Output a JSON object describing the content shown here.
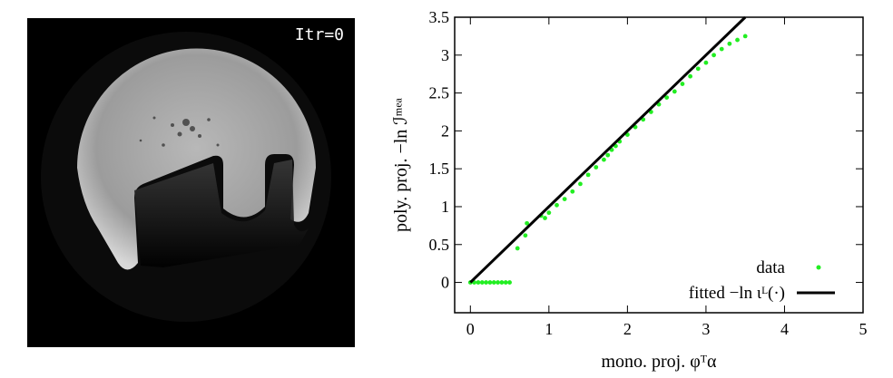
{
  "figure": {
    "left_panel": {
      "iteration_label": "Itr=0"
    }
  },
  "chart_data": {
    "type": "scatter",
    "xlabel": "mono. proj. φᵀα",
    "ylabel": "poly. proj. −ln ℐᵐᵉᵃ",
    "xlim": [
      -0.2,
      5
    ],
    "ylim": [
      -0.4,
      3.5
    ],
    "xticks": [
      0,
      1,
      2,
      3,
      4,
      5
    ],
    "yticks": [
      0,
      0.5,
      1,
      1.5,
      2,
      2.5,
      3,
      3.5
    ],
    "xtick_labels": [
      "0",
      "1",
      "2",
      "3",
      "4",
      "5"
    ],
    "ytick_labels": [
      "0",
      "0.5",
      "1",
      "1.5",
      "2",
      "2.5",
      "3",
      "3.5"
    ],
    "grid": false,
    "legend_position": "bottom-right",
    "series": [
      {
        "name": "data",
        "kind": "points",
        "color": "#22ee22",
        "x": [
          0.0,
          0.05,
          0.1,
          0.15,
          0.2,
          0.25,
          0.3,
          0.35,
          0.4,
          0.45,
          0.5,
          0.6,
          0.7,
          0.72,
          0.9,
          0.95,
          1.0,
          1.1,
          1.2,
          1.3,
          1.4,
          1.5,
          1.6,
          1.7,
          1.75,
          1.8,
          1.85,
          1.9,
          2.0,
          2.1,
          2.2,
          2.3,
          2.4,
          2.5,
          2.6,
          2.7,
          2.8,
          2.9,
          3.0,
          3.1,
          3.2,
          3.3,
          3.4,
          3.5
        ],
        "y": [
          0.0,
          0.0,
          0.0,
          0.0,
          0.0,
          0.0,
          0.0,
          0.0,
          0.0,
          0.0,
          0.0,
          0.45,
          0.62,
          0.78,
          0.88,
          0.85,
          0.92,
          1.02,
          1.1,
          1.2,
          1.3,
          1.42,
          1.52,
          1.62,
          1.68,
          1.75,
          1.8,
          1.86,
          1.95,
          2.05,
          2.15,
          2.25,
          2.35,
          2.44,
          2.52,
          2.62,
          2.72,
          2.82,
          2.9,
          3.0,
          3.08,
          3.15,
          3.2,
          3.25
        ]
      },
      {
        "name": "fitted −ln ιᴸ(·)",
        "kind": "line",
        "color": "#000000",
        "x": [
          0.0,
          3.5
        ],
        "y": [
          0.0,
          3.5
        ]
      }
    ],
    "legend": {
      "data_label": "data",
      "fit_label": "fitted −ln ιᴸ(·)"
    }
  }
}
